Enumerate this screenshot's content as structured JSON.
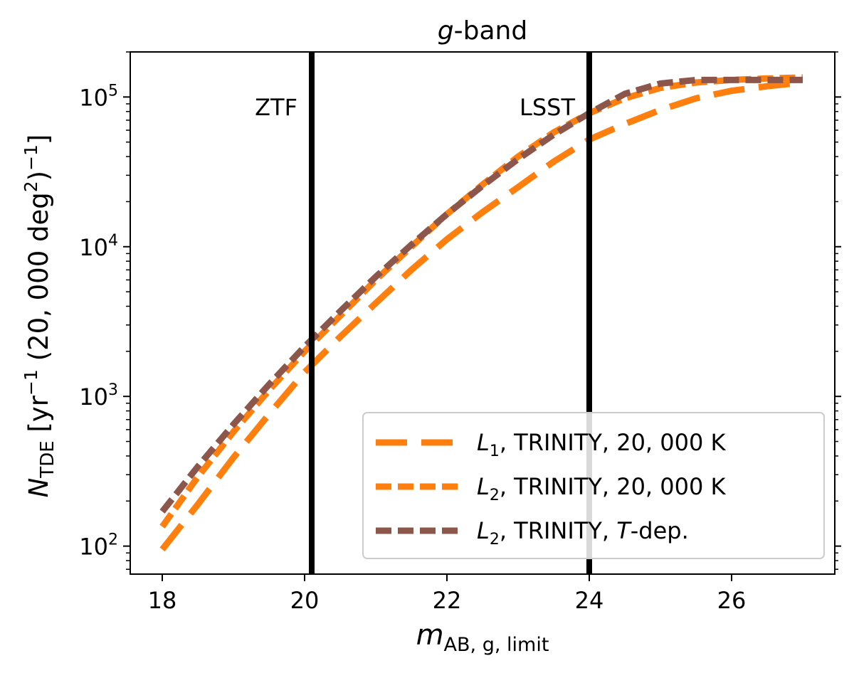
{
  "chart_data": {
    "type": "line",
    "title_italic": "g",
    "title_rest": "-band",
    "xlabel": {
      "main": "m",
      "sub": "AB, g, limit"
    },
    "ylabel": {
      "n": "N",
      "nsub": "TDE",
      "t1": " [yr",
      "exp1": "−1",
      "t2": " (20, 000 deg",
      "exp2": "2",
      "t3": ")",
      "exp3": "−1",
      "t4": "]"
    },
    "xlim": [
      17.55,
      27.45
    ],
    "ylim": [
      65,
      200000
    ],
    "yscale": "log",
    "xticks": [
      18,
      20,
      22,
      24,
      26
    ],
    "xtick_labels": [
      "18",
      "20",
      "22",
      "24",
      "26"
    ],
    "yticks": [
      100,
      1000,
      10000,
      100000
    ],
    "ytick_labels": [
      {
        "base": "10",
        "exp": "2"
      },
      {
        "base": "10",
        "exp": "3"
      },
      {
        "base": "10",
        "exp": "4"
      },
      {
        "base": "10",
        "exp": "5"
      }
    ],
    "vlines": [
      {
        "x": 20.1,
        "label": "ZTF"
      },
      {
        "x": 24.0,
        "label": "LSST"
      }
    ],
    "x": [
      18.0,
      18.5,
      19.0,
      19.5,
      20.0,
      20.5,
      21.0,
      21.5,
      22.0,
      22.5,
      23.0,
      23.5,
      24.0,
      24.5,
      25.0,
      25.5,
      26.0,
      26.5,
      27.0
    ],
    "series": [
      {
        "label_parts": {
          "sym": "L",
          "sub": "1",
          "rest": ", TRINITY, 20, 000 K"
        },
        "color": "#ff7f0e",
        "dash": "44 20",
        "width": 9,
        "values": [
          95,
          190,
          390,
          760,
          1450,
          2500,
          4200,
          7000,
          11200,
          17000,
          25000,
          37000,
          52000,
          66000,
          82000,
          98000,
          110000,
          118000,
          125000
        ]
      },
      {
        "label_parts": {
          "sym": "L",
          "sub": "2",
          "rest": ", TRINITY, 20, 000 K"
        },
        "color": "#ff7f0e",
        "dash": "22 9",
        "width": 9,
        "values": [
          135,
          290,
          580,
          1100,
          2000,
          3450,
          6000,
          10000,
          16500,
          26000,
          40000,
          58000,
          78000,
          98000,
          115000,
          125000,
          130000,
          133000,
          135000
        ]
      },
      {
        "label_parts": {
          "sym": "L",
          "sub": "2",
          "rest": ", TRINITY, ",
          "sym2": "T",
          "rest2": "-dep."
        },
        "color": "#8c564b",
        "dash": "22 9",
        "width": 9,
        "values": [
          170,
          340,
          650,
          1200,
          2150,
          3700,
          6300,
          10300,
          16500,
          25500,
          38500,
          56000,
          78000,
          105000,
          123000,
          130000,
          130000,
          130000,
          130000
        ]
      }
    ],
    "legend_position": "lower-right"
  }
}
